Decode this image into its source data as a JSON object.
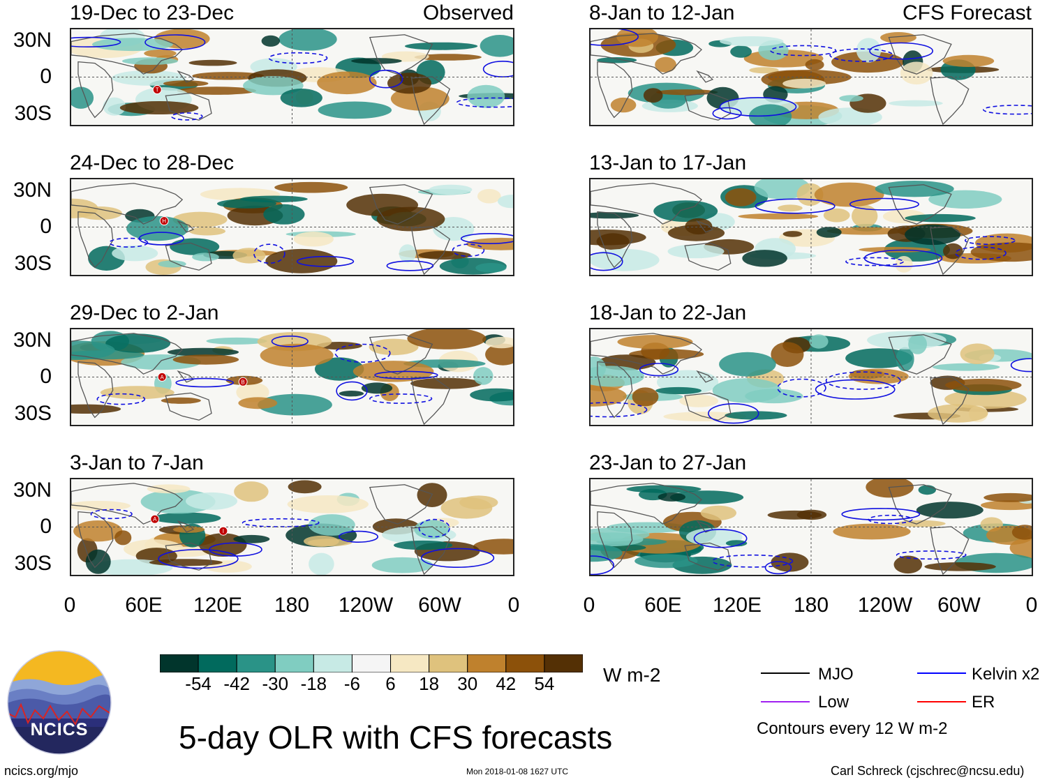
{
  "title": "5-day OLR with CFS forecasts",
  "observed_tag": "Observed",
  "forecast_tag": "CFS Forecast",
  "lat_labels": [
    "30N",
    "0",
    "30S"
  ],
  "lon_labels": [
    "0",
    "60E",
    "120E",
    "180",
    "120W",
    "60W",
    "0"
  ],
  "observed_panels": [
    {
      "title": "19-Dec to 23-Dec",
      "storms": [
        "T"
      ]
    },
    {
      "title": "24-Dec to 28-Dec",
      "storms": [
        "H"
      ]
    },
    {
      "title": "29-Dec to 2-Jan",
      "storms": [
        "A",
        "B"
      ]
    },
    {
      "title": "3-Jan to 7-Jan",
      "storms": [
        "A",
        "I"
      ]
    }
  ],
  "forecast_panels": [
    {
      "title": "8-Jan to 12-Jan"
    },
    {
      "title": "13-Jan to 17-Jan"
    },
    {
      "title": "18-Jan to 22-Jan"
    },
    {
      "title": "23-Jan to 27-Jan"
    }
  ],
  "colorbar": {
    "unit": "W m-2",
    "ticks": [
      "-54",
      "-42",
      "-30",
      "-18",
      "-6",
      "6",
      "18",
      "30",
      "42",
      "54"
    ],
    "colors": [
      "#01352c",
      "#016a5d",
      "#2a9387",
      "#80cdc1",
      "#c7eae5",
      "#f5f5f5",
      "#f6e8c3",
      "#dfc27d",
      "#bf812d",
      "#8c510a",
      "#543005"
    ]
  },
  "legend": {
    "items": [
      {
        "label": "MJO",
        "color": "#000000"
      },
      {
        "label": "Kelvin x2",
        "color": "#0000ff"
      },
      {
        "label": "Low",
        "color": "#a020f0"
      },
      {
        "label": "ER",
        "color": "#ff0000"
      }
    ],
    "note": "Contours every 12 W m-2"
  },
  "logo_text": "NCICS",
  "website": "ncics.org/mjo",
  "timestamp": "Mon 2018-01-08 1627 UTC",
  "credit": "Carl Schreck (cjschrec@ncsu.edu)"
}
